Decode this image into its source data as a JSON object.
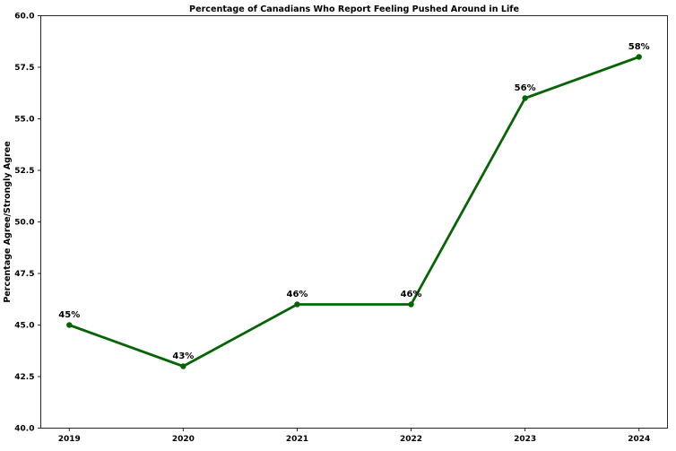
{
  "figure": {
    "title": "Percentage of Canadians Who Report Feeling Pushed Around in Life",
    "ylabel": "Percentage Agree/Strongly Agree"
  },
  "chart_data": {
    "type": "line",
    "title": "Percentage of Canadians Who Report Feeling Pushed Around in Life",
    "xlabel": "",
    "ylabel": "Percentage Agree/Strongly Agree",
    "x": [
      2019,
      2020,
      2021,
      2022,
      2023,
      2024
    ],
    "series": [
      {
        "name": "percent-agree-strongly-agree",
        "values": [
          45,
          43,
          46,
          46,
          56,
          58
        ]
      }
    ],
    "point_labels": [
      "45%",
      "43%",
      "46%",
      "46%",
      "56%",
      "58%"
    ],
    "xticks": [
      2019,
      2020,
      2021,
      2022,
      2023,
      2024
    ],
    "yticks": [
      40.0,
      42.5,
      45.0,
      47.5,
      50.0,
      52.5,
      55.0,
      57.5,
      60.0
    ],
    "xlim": [
      2018.75,
      2024.25
    ],
    "ylim": [
      40.0,
      60.0
    ],
    "grid": false,
    "legend": "none",
    "line_color": "#066406",
    "marker_color": "#066406",
    "spine_color": "#262626",
    "text_color": "#000000",
    "background_color": "#ffffff"
  }
}
